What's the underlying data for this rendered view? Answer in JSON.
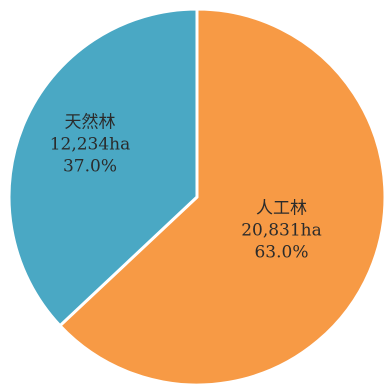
{
  "chart_data": {
    "type": "pie",
    "start_angle_deg": 0,
    "direction": "clockwise",
    "slices": [
      {
        "name": "人工林",
        "value": 20831,
        "value_label": "20,831ha",
        "percent_label": "63.0%",
        "color": "#f79a45"
      },
      {
        "name": "天然林",
        "value": 12234,
        "value_label": "12,234ha",
        "percent_label": "37.0%",
        "color": "#4aa8c4"
      }
    ]
  }
}
